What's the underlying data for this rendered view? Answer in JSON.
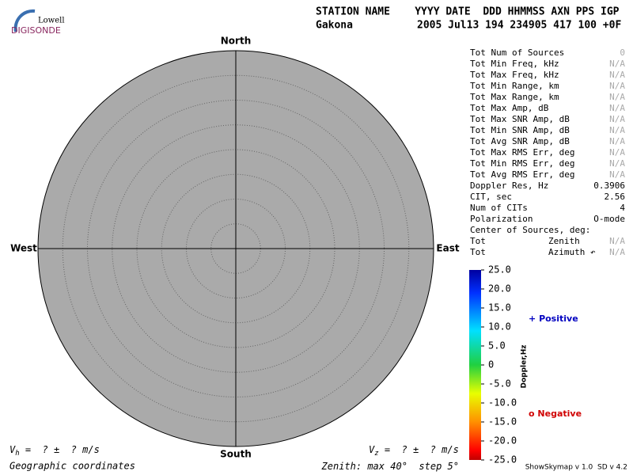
{
  "logo": {
    "line1": "Lowell",
    "line2": "DIGISONDE"
  },
  "header": {
    "labels": "STATION NAME    YYYY DATE  DDD HHMMSS AXN PPS IGP",
    "station": "Gakona",
    "values": "2005 Jul13 194 234905 417 100 +0F"
  },
  "skymap": {
    "north": "North",
    "south": "South",
    "west": "West",
    "east": "East"
  },
  "zenith": {
    "label": "Zenith: max",
    "max": 40,
    "unit": "°",
    "step_label": "step",
    "step": 5
  },
  "coordinates": "Geographic coordinates",
  "vh": {
    "symbol": "V",
    "sub": "h",
    "text": " =  ? ±  ? m/s"
  },
  "vz": {
    "symbol": "V",
    "sub": "z",
    "text": " =  ? ±  ? m/s"
  },
  "table": {
    "rows": [
      [
        "Tot Num of Sources",
        0
      ],
      [
        "Tot Min Freq, kHz",
        "N/A"
      ],
      [
        "Tot Max Freq, kHz",
        "N/A"
      ],
      [
        "Tot Min Range, km",
        "N/A"
      ],
      [
        "Tot Max Range, km",
        "N/A"
      ],
      [
        "Tot Max Amp, dB",
        "N/A"
      ],
      [
        "Tot Max SNR Amp, dB",
        "N/A"
      ],
      [
        "Tot Min SNR Amp, dB",
        "N/A"
      ],
      [
        "Tot Avg SNR Amp, dB",
        "N/A"
      ],
      [
        "Tot Max RMS Err, deg",
        "N/A"
      ],
      [
        "Tot Min RMS Err, deg",
        "N/A"
      ],
      [
        "Tot Avg RMS Err, deg",
        "N/A"
      ],
      [
        "Doppler Res, Hz",
        0.3906
      ],
      [
        "CIT, sec",
        2.56
      ],
      [
        "Num of CITs",
        4
      ],
      [
        "Polarization",
        "O-mode"
      ]
    ],
    "center_title": "Center of Sources, deg:",
    "center_rows": [
      [
        "Tot",
        "Zenith",
        "N/A"
      ],
      [
        "Tot",
        "Azimuth ↶",
        "N/A"
      ]
    ]
  },
  "colorbar": {
    "label": "Doppler,Hz",
    "lim": [
      -25,
      25
    ],
    "ticks": [
      {
        "value": 25,
        "label": "25.0"
      },
      {
        "value": 20,
        "label": "20.0"
      },
      {
        "value": 15,
        "label": "15.0"
      },
      {
        "value": 10,
        "label": "10.0"
      },
      {
        "value": 5,
        "label": "5.0"
      },
      0,
      {
        "value": -5,
        "label": "-5.0"
      },
      {
        "value": -10,
        "label": "-10.0"
      },
      {
        "value": -15,
        "label": "-15.0"
      },
      {
        "value": -20,
        "label": "-20.0"
      },
      {
        "value": -25,
        "label": "-25.0"
      }
    ]
  },
  "legend": {
    "positive_marker": "+",
    "positive": "Positive",
    "negative_marker": "o",
    "negative": "Negative"
  },
  "version": "ShowSkymap v 1.0  SD v 4.2"
}
